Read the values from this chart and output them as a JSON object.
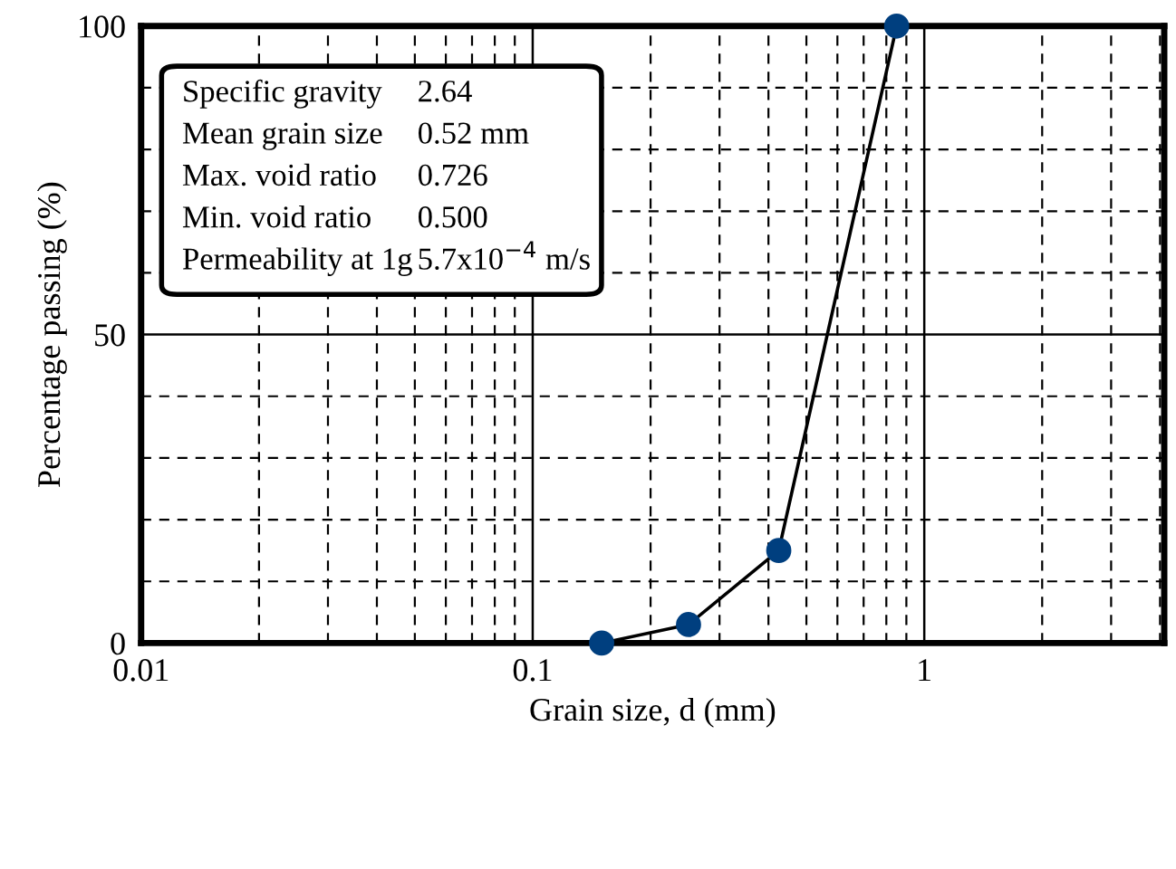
{
  "chart_data": {
    "type": "line",
    "xlabel": "Grain size, d (mm)",
    "ylabel": "Percentage passing (%)",
    "x": [
      0.15,
      0.25,
      0.425,
      0.85
    ],
    "series": [
      {
        "color": "#003f7f",
        "values": [
          0,
          3,
          15,
          100
        ]
      }
    ],
    "marker": "circle",
    "line_style": "solid",
    "log": "x",
    "grid": true,
    "xlim": [
      0.01,
      4.1
    ],
    "ylim": [
      0,
      100
    ],
    "xticks": [
      0.01,
      {
        "value": 0.02,
        "label": null
      },
      {
        "value": 0.03,
        "label": null
      },
      {
        "value": 0.04,
        "label": null
      },
      {
        "value": 0.05,
        "label": null
      },
      {
        "value": 0.06,
        "label": null
      },
      {
        "value": 0.07,
        "label": null
      },
      {
        "value": 0.08,
        "label": null
      },
      {
        "value": 0.09,
        "label": null
      },
      0.1,
      {
        "value": 0.2,
        "label": null
      },
      {
        "value": 0.3,
        "label": null
      },
      {
        "value": 0.4,
        "label": null
      },
      {
        "value": 0.5,
        "label": null
      },
      {
        "value": 0.6,
        "label": null
      },
      {
        "value": 0.7,
        "label": null
      },
      {
        "value": 0.8,
        "label": null
      },
      {
        "value": 0.9,
        "label": null
      },
      1,
      {
        "value": 2,
        "label": null
      },
      {
        "value": 3,
        "label": null
      },
      {
        "value": 4,
        "label": null
      }
    ],
    "yticks": [
      0,
      {
        "value": 10,
        "label": null
      },
      {
        "value": 20,
        "label": null
      },
      {
        "value": 30,
        "label": null
      },
      {
        "value": 40,
        "label": null
      },
      50,
      {
        "value": 60,
        "label": null
      },
      {
        "value": 70,
        "label": null
      },
      {
        "value": 80,
        "label": null
      },
      {
        "value": 90,
        "label": null
      },
      100
    ],
    "annotations": [
      "Specific gravity",
      "2.64",
      "Mean grain size",
      "0.52 mm",
      "Max. void ratio",
      "0.726",
      "Min. void ratio",
      "0.500",
      "Permeability at 1g",
      "5.7x10$^{−4}$ m/s"
    ]
  }
}
